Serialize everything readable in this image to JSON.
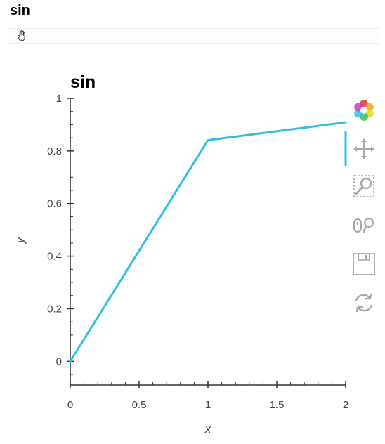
{
  "header": {
    "title": "sin"
  },
  "toolbar": {
    "icons": [
      "pan-icon",
      "zoom-box-icon",
      "wheel-zoom-icon",
      "save-icon",
      "reset-icon",
      "bokeh-logo"
    ]
  },
  "chart_data": {
    "type": "line",
    "title": "sin",
    "xlabel": "x",
    "ylabel": "y",
    "xlim": [
      0,
      2
    ],
    "ylim": [
      -0.09,
      1
    ],
    "x_ticks": [
      "0",
      "0.5",
      "1",
      "1.5",
      "2"
    ],
    "y_ticks": [
      "0",
      "0.2",
      "0.4",
      "0.6",
      "0.8",
      "1"
    ],
    "grid": false,
    "line_color": "#2fbfe4",
    "series": [
      {
        "x": [
          0,
          1,
          2
        ],
        "y": [
          0,
          0.841,
          0.909
        ]
      }
    ]
  }
}
